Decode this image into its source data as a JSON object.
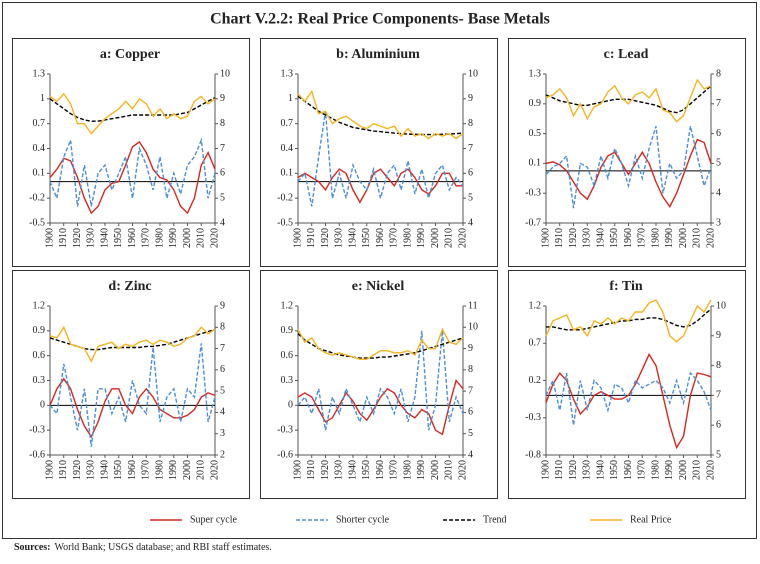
{
  "title": "Chart V.2.2: Real Price Components- Base Metals",
  "legend": [
    {
      "name": "Super cycle",
      "color": "#d7261e",
      "dash": "none"
    },
    {
      "name": "Shorter cycle",
      "color": "#4a8fd4",
      "dash": "4 2"
    },
    {
      "name": "Trend",
      "color": "#000000",
      "dash": "4 2"
    },
    {
      "name": "Real Price",
      "color": "#f5b41e",
      "dash": "none"
    }
  ],
  "sources": {
    "label": "Sources:",
    "text": "World Bank; USGS database; and RBI staff estimates."
  },
  "chart_data": [
    {
      "type": "line",
      "title": "a: Copper",
      "x": [
        1900,
        1905,
        1910,
        1915,
        1920,
        1925,
        1930,
        1935,
        1940,
        1945,
        1950,
        1955,
        1960,
        1965,
        1970,
        1975,
        1980,
        1985,
        1990,
        1995,
        2000,
        2005,
        2010,
        2015,
        2020
      ],
      "xlim": [
        1900,
        2020
      ],
      "xticks": [
        1900,
        1910,
        1920,
        1930,
        1940,
        1950,
        1960,
        1970,
        1980,
        1990,
        2000,
        2010,
        2020
      ],
      "ylim": [
        -0.5,
        1.3
      ],
      "yticks": [
        -0.5,
        -0.2,
        0.1,
        0.4,
        0.7,
        1,
        1.3
      ],
      "y2lim": [
        4,
        10
      ],
      "y2ticks": [
        4,
        5,
        6,
        7,
        8,
        9,
        10
      ],
      "series": [
        {
          "values": [
            0.05,
            0.15,
            0.28,
            0.25,
            0.05,
            -0.2,
            -0.38,
            -0.3,
            -0.1,
            -0.02,
            0.0,
            0.2,
            0.42,
            0.48,
            0.35,
            0.15,
            0.05,
            0.02,
            -0.1,
            -0.3,
            -0.38,
            -0.2,
            0.2,
            0.35,
            0.15
          ]
        },
        {
          "values": [
            0.0,
            -0.2,
            0.3,
            0.5,
            -0.3,
            0.2,
            -0.3,
            0.1,
            0.2,
            -0.1,
            0.1,
            0.3,
            -0.2,
            0.4,
            0.2,
            -0.1,
            0.3,
            -0.2,
            0.1,
            -0.15,
            0.2,
            0.3,
            0.5,
            -0.2,
            0.1
          ]
        },
        {
          "axis": "y2",
          "values": [
            9.0,
            8.8,
            8.6,
            8.4,
            8.25,
            8.15,
            8.1,
            8.1,
            8.15,
            8.2,
            8.25,
            8.3,
            8.35,
            8.35,
            8.35,
            8.35,
            8.35,
            8.35,
            8.35,
            8.4,
            8.45,
            8.6,
            8.75,
            8.9,
            9.05
          ]
        },
        {
          "axis": "y2",
          "values": [
            9.1,
            8.9,
            9.2,
            8.8,
            8.0,
            8.0,
            7.6,
            7.9,
            8.2,
            8.4,
            8.6,
            8.9,
            8.6,
            9.0,
            8.8,
            8.3,
            8.6,
            8.2,
            8.4,
            8.2,
            8.3,
            8.9,
            9.1,
            8.8,
            9.0
          ]
        }
      ]
    },
    {
      "type": "line",
      "title": "b: Aluminium",
      "x": [
        1900,
        1905,
        1910,
        1915,
        1920,
        1925,
        1930,
        1935,
        1940,
        1945,
        1950,
        1955,
        1960,
        1965,
        1970,
        1975,
        1980,
        1985,
        1990,
        1995,
        2000,
        2005,
        2010,
        2015,
        2020
      ],
      "xlim": [
        1900,
        2020
      ],
      "xticks": [
        1900,
        1910,
        1920,
        1930,
        1940,
        1950,
        1960,
        1970,
        1980,
        1990,
        2000,
        2010,
        2020
      ],
      "ylim": [
        -0.5,
        1.3
      ],
      "yticks": [
        -0.5,
        -0.2,
        0.1,
        0.4,
        0.7,
        1,
        1.3
      ],
      "y2lim": [
        4,
        10
      ],
      "y2ticks": [
        4,
        5,
        6,
        7,
        8,
        9,
        10
      ],
      "series": [
        {
          "values": [
            0.05,
            0.1,
            0.05,
            0.0,
            -0.1,
            0.05,
            0.15,
            0.1,
            -0.1,
            -0.25,
            -0.1,
            0.1,
            0.15,
            0.05,
            -0.05,
            0.1,
            0.15,
            0.05,
            -0.1,
            -0.15,
            -0.05,
            0.1,
            0.1,
            -0.05,
            -0.05
          ]
        },
        {
          "values": [
            0.0,
            0.1,
            -0.3,
            0.3,
            0.85,
            -0.2,
            0.1,
            -0.2,
            0.2,
            0.0,
            -0.1,
            0.15,
            -0.2,
            0.1,
            0.2,
            -0.1,
            0.25,
            -0.15,
            0.15,
            -0.2,
            0.1,
            0.2,
            -0.1,
            0.05,
            -0.05
          ]
        },
        {
          "axis": "y2",
          "values": [
            9.1,
            8.9,
            8.7,
            8.5,
            8.35,
            8.2,
            8.05,
            7.95,
            7.85,
            7.8,
            7.75,
            7.7,
            7.68,
            7.65,
            7.62,
            7.6,
            7.58,
            7.57,
            7.56,
            7.56,
            7.56,
            7.57,
            7.58,
            7.6,
            7.62
          ]
        },
        {
          "axis": "y2",
          "values": [
            9.2,
            8.9,
            9.3,
            8.4,
            8.5,
            8.0,
            8.2,
            8.3,
            8.1,
            7.9,
            7.8,
            8.0,
            7.9,
            7.8,
            7.9,
            7.5,
            7.8,
            7.5,
            7.6,
            7.4,
            7.6,
            7.5,
            7.6,
            7.4,
            7.6
          ]
        }
      ]
    },
    {
      "type": "line",
      "title": "c: Lead",
      "x": [
        1900,
        1905,
        1910,
        1915,
        1920,
        1925,
        1930,
        1935,
        1940,
        1945,
        1950,
        1955,
        1960,
        1965,
        1970,
        1975,
        1980,
        1985,
        1990,
        1995,
        2000,
        2005,
        2010,
        2015,
        2020
      ],
      "xlim": [
        1900,
        2020
      ],
      "xticks": [
        1900,
        1910,
        1920,
        1930,
        1940,
        1950,
        1960,
        1970,
        1980,
        1990,
        2000,
        2010,
        2020
      ],
      "ylim": [
        -0.7,
        1.3
      ],
      "yticks": [
        -0.7,
        -0.3,
        0.1,
        0.5,
        0.9,
        1.3
      ],
      "y2lim": [
        3,
        8
      ],
      "y2ticks": [
        3,
        4,
        5,
        6,
        7,
        8
      ],
      "series": [
        {
          "values": [
            0.1,
            0.12,
            0.08,
            0.0,
            -0.15,
            -0.3,
            -0.38,
            -0.2,
            0.05,
            0.2,
            0.25,
            0.1,
            -0.05,
            0.1,
            0.25,
            0.1,
            -0.15,
            -0.35,
            -0.48,
            -0.3,
            -0.05,
            0.2,
            0.42,
            0.38,
            0.1
          ]
        },
        {
          "values": [
            -0.05,
            0.05,
            0.1,
            0.2,
            -0.5,
            0.1,
            0.05,
            -0.2,
            0.2,
            -0.1,
            0.3,
            0.1,
            -0.2,
            0.2,
            -0.1,
            0.3,
            0.6,
            -0.3,
            0.1,
            -0.1,
            0.0,
            0.6,
            0.2,
            -0.2,
            0.05
          ]
        },
        {
          "axis": "y2",
          "values": [
            7.3,
            7.2,
            7.1,
            7.05,
            7.0,
            6.95,
            6.95,
            7.0,
            7.05,
            7.1,
            7.15,
            7.15,
            7.15,
            7.1,
            7.05,
            7.0,
            6.95,
            6.85,
            6.75,
            6.7,
            6.8,
            7.0,
            7.2,
            7.4,
            7.6
          ]
        },
        {
          "axis": "y2",
          "values": [
            7.2,
            7.3,
            7.5,
            7.2,
            6.6,
            7.0,
            6.5,
            6.9,
            7.0,
            7.4,
            7.6,
            7.2,
            7.0,
            7.3,
            7.4,
            7.2,
            7.5,
            6.8,
            6.7,
            6.4,
            6.6,
            7.2,
            7.8,
            7.5,
            7.6
          ]
        }
      ]
    },
    {
      "type": "line",
      "title": "d: Zinc",
      "x": [
        1900,
        1905,
        1910,
        1915,
        1920,
        1925,
        1930,
        1935,
        1940,
        1945,
        1950,
        1955,
        1960,
        1965,
        1970,
        1975,
        1980,
        1985,
        1990,
        1995,
        2000,
        2005,
        2010,
        2015,
        2020
      ],
      "xlim": [
        1900,
        2020
      ],
      "xticks": [
        1900,
        1910,
        1920,
        1930,
        1940,
        1950,
        1960,
        1970,
        1980,
        1990,
        2000,
        2010,
        2020
      ],
      "ylim": [
        -0.6,
        1.2
      ],
      "yticks": [
        -0.6,
        -0.3,
        0,
        0.3,
        0.6,
        0.9,
        1.2
      ],
      "y2lim": [
        2,
        9
      ],
      "y2ticks": [
        2,
        3,
        4,
        5,
        6,
        7,
        8,
        9
      ],
      "series": [
        {
          "values": [
            0.0,
            0.2,
            0.32,
            0.2,
            -0.05,
            -0.25,
            -0.38,
            -0.2,
            0.05,
            0.2,
            0.2,
            0.0,
            -0.1,
            0.1,
            0.2,
            0.1,
            -0.05,
            -0.1,
            -0.15,
            -0.15,
            -0.12,
            -0.05,
            0.1,
            0.15,
            0.12
          ]
        },
        {
          "values": [
            0.0,
            -0.1,
            0.5,
            0.1,
            -0.3,
            0.2,
            -0.5,
            0.2,
            0.2,
            -0.1,
            0.1,
            -0.2,
            0.3,
            0.0,
            -0.1,
            0.7,
            -0.2,
            0.1,
            0.2,
            -0.2,
            0.2,
            0.1,
            0.75,
            -0.2,
            0.1
          ]
        },
        {
          "axis": "y2",
          "values": [
            7.5,
            7.4,
            7.3,
            7.2,
            7.1,
            7.0,
            6.95,
            6.95,
            7.0,
            7.05,
            7.05,
            7.05,
            7.05,
            7.05,
            7.1,
            7.1,
            7.15,
            7.2,
            7.3,
            7.4,
            7.5,
            7.6,
            7.7,
            7.8,
            7.9
          ]
        },
        {
          "axis": "y2",
          "values": [
            7.6,
            7.5,
            8.0,
            7.2,
            7.1,
            7.0,
            6.4,
            7.1,
            7.2,
            7.3,
            7.0,
            7.2,
            7.1,
            7.3,
            7.4,
            7.2,
            7.4,
            7.3,
            7.1,
            7.2,
            7.5,
            7.6,
            8.0,
            7.7,
            7.9
          ]
        }
      ]
    },
    {
      "type": "line",
      "title": "e: Nickel",
      "x": [
        1900,
        1905,
        1910,
        1915,
        1920,
        1925,
        1930,
        1935,
        1940,
        1945,
        1950,
        1955,
        1960,
        1965,
        1970,
        1975,
        1980,
        1985,
        1990,
        1995,
        2000,
        2005,
        2010,
        2015,
        2020
      ],
      "xlim": [
        1900,
        2020
      ],
      "xticks": [
        1900,
        1910,
        1920,
        1930,
        1940,
        1950,
        1960,
        1970,
        1980,
        1990,
        2000,
        2010,
        2020
      ],
      "ylim": [
        -0.6,
        1.2
      ],
      "yticks": [
        -0.6,
        -0.3,
        0,
        0.3,
        0.6,
        0.9,
        1.2
      ],
      "y2lim": [
        4,
        11
      ],
      "y2ticks": [
        4,
        5,
        6,
        7,
        8,
        9,
        10,
        11
      ],
      "series": [
        {
          "values": [
            0.1,
            0.15,
            0.1,
            -0.05,
            -0.2,
            -0.15,
            0.0,
            0.15,
            0.05,
            -0.1,
            -0.18,
            -0.05,
            0.1,
            0.2,
            0.15,
            0.0,
            -0.1,
            -0.15,
            -0.05,
            -0.1,
            -0.3,
            -0.35,
            0.0,
            0.3,
            0.2
          ]
        },
        {
          "values": [
            0.0,
            0.1,
            -0.1,
            0.2,
            -0.3,
            0.1,
            -0.1,
            0.2,
            0.0,
            -0.2,
            0.1,
            -0.1,
            0.2,
            0.1,
            -0.1,
            0.2,
            -0.2,
            0.1,
            0.9,
            -0.3,
            0.0,
            0.9,
            -0.2,
            0.1,
            -0.1
          ]
        },
        {
          "axis": "y2",
          "values": [
            9.7,
            9.4,
            9.2,
            9.0,
            8.9,
            8.8,
            8.7,
            8.65,
            8.6,
            8.55,
            8.55,
            8.55,
            8.6,
            8.6,
            8.65,
            8.7,
            8.75,
            8.8,
            8.9,
            9.0,
            9.1,
            9.2,
            9.3,
            9.4,
            9.5
          ]
        },
        {
          "axis": "y2",
          "values": [
            9.9,
            9.3,
            9.5,
            9.0,
            8.8,
            8.7,
            8.8,
            8.7,
            8.6,
            8.5,
            8.5,
            8.7,
            8.9,
            8.9,
            8.8,
            8.8,
            8.9,
            8.7,
            9.4,
            9.0,
            9.0,
            9.9,
            9.3,
            9.2,
            9.5
          ]
        }
      ]
    },
    {
      "type": "line",
      "title": "f: Tin",
      "x": [
        1900,
        1905,
        1910,
        1915,
        1920,
        1925,
        1930,
        1935,
        1940,
        1945,
        1950,
        1955,
        1960,
        1965,
        1970,
        1975,
        1980,
        1985,
        1990,
        1995,
        2000,
        2005,
        2010,
        2015,
        2020
      ],
      "xlim": [
        1900,
        2020
      ],
      "xticks": [
        1900,
        1910,
        1920,
        1930,
        1940,
        1950,
        1960,
        1970,
        1980,
        1990,
        2000,
        2010,
        2020
      ],
      "ylim": [
        -0.8,
        1.2
      ],
      "yticks": [
        -0.8,
        -0.3,
        0.2,
        0.7,
        1.2
      ],
      "y2lim": [
        5,
        10
      ],
      "y2ticks": [
        5,
        6,
        7,
        8,
        9,
        10
      ],
      "series": [
        {
          "values": [
            -0.1,
            0.15,
            0.3,
            0.2,
            -0.05,
            -0.25,
            -0.15,
            0.0,
            0.05,
            0.0,
            -0.05,
            -0.05,
            0.0,
            0.15,
            0.35,
            0.55,
            0.4,
            0.0,
            -0.4,
            -0.7,
            -0.55,
            0.0,
            0.3,
            0.28,
            0.25
          ]
        },
        {
          "values": [
            0.0,
            0.2,
            -0.2,
            0.3,
            -0.4,
            0.2,
            -0.2,
            0.2,
            0.1,
            -0.2,
            0.15,
            0.1,
            -0.1,
            0.2,
            0.1,
            0.15,
            0.2,
            0.1,
            -0.1,
            0.2,
            -0.1,
            0.3,
            0.2,
            0.05,
            -0.2
          ]
        },
        {
          "axis": "y2",
          "values": [
            9.3,
            9.3,
            9.25,
            9.2,
            9.2,
            9.2,
            9.25,
            9.3,
            9.35,
            9.4,
            9.45,
            9.5,
            9.5,
            9.55,
            9.55,
            9.6,
            9.6,
            9.55,
            9.45,
            9.35,
            9.3,
            9.35,
            9.5,
            9.7,
            9.9
          ]
        },
        {
          "axis": "y2",
          "values": [
            9.0,
            9.5,
            9.6,
            9.7,
            9.2,
            9.3,
            9.0,
            9.5,
            9.4,
            9.6,
            9.4,
            9.6,
            9.5,
            9.8,
            9.8,
            10.1,
            10.2,
            9.8,
            9.0,
            8.8,
            9.0,
            9.5,
            10.0,
            9.8,
            10.2
          ]
        }
      ]
    }
  ]
}
